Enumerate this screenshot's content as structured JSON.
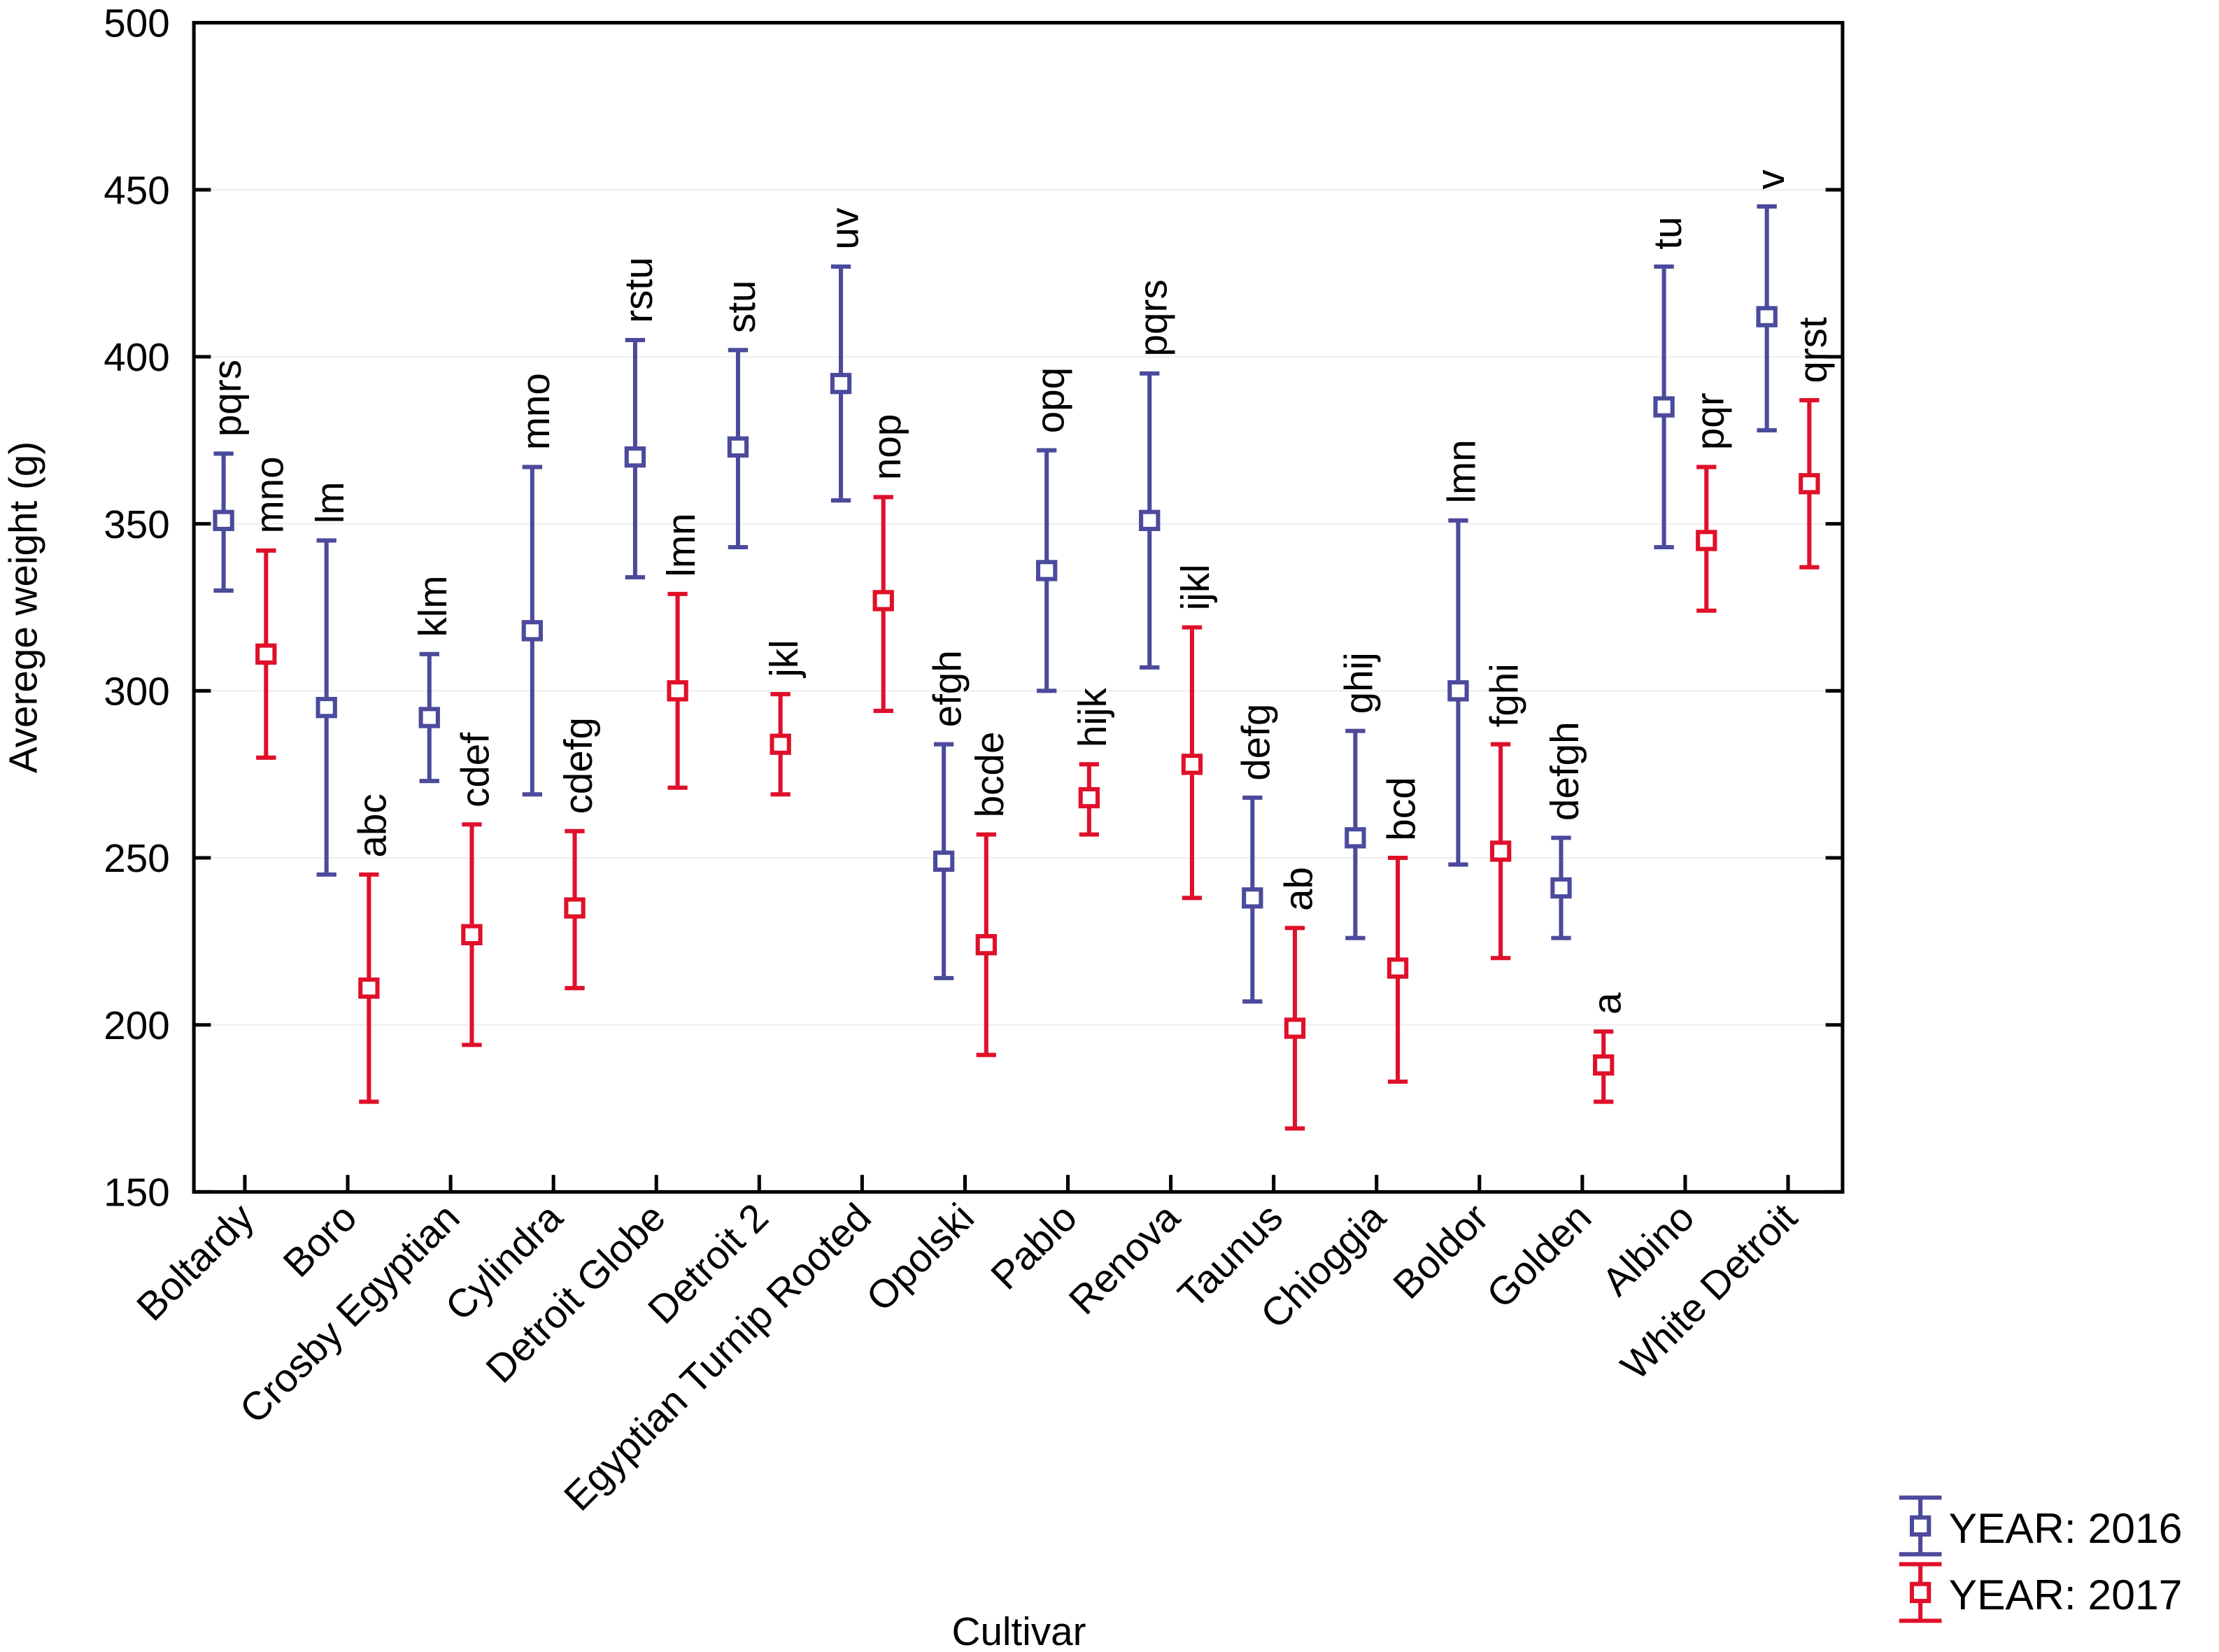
{
  "chart_data": {
    "type": "scatter",
    "subtype": "means-with-error-bars",
    "title": "",
    "xlabel": "Cultivar",
    "ylabel": "Averege weight (g)",
    "ylim": [
      150,
      500
    ],
    "yticks": [
      150,
      200,
      250,
      300,
      350,
      400,
      450,
      500
    ],
    "grid": true,
    "legend_position": "bottom-right",
    "categories": [
      "Boltardy",
      "Boro",
      "Crosby Egyptian",
      "Cylindra",
      "Detroit Globe",
      "Detroit 2",
      "Egyptian Turnip Rooted",
      "Opolski",
      "Pablo",
      "Renova",
      "Taunus",
      "Chioggia",
      "Boldor",
      "Golden",
      "Albino",
      "White Detroit"
    ],
    "series": [
      {
        "name": "YEAR: 2016",
        "color": "#4b4a9c",
        "marker": "open-square",
        "mean": [
          351,
          295,
          292,
          318,
          370,
          373,
          392,
          249,
          336,
          351,
          238,
          256,
          300,
          241,
          385,
          412
        ],
        "upper": [
          371,
          345,
          311,
          367,
          405,
          402,
          427,
          284,
          372,
          395,
          268,
          288,
          351,
          256,
          427,
          445
        ],
        "lower": [
          330,
          245,
          273,
          269,
          334,
          343,
          357,
          214,
          300,
          307,
          207,
          226,
          248,
          226,
          343,
          378
        ],
        "letters": [
          "pqrs",
          "lm",
          "klm",
          "mno",
          "rstu",
          "stu",
          "uv",
          "efgh",
          "opq",
          "pqrs",
          "defg",
          "ghij",
          "lmn",
          "defgh",
          "tu",
          "v"
        ]
      },
      {
        "name": "YEAR: 2017",
        "color": "#e0102a",
        "marker": "open-square",
        "mean": [
          311,
          211,
          227,
          235,
          300,
          284,
          327,
          224,
          268,
          278,
          199,
          217,
          252,
          188,
          345,
          362
        ],
        "upper": [
          342,
          245,
          260,
          258,
          329,
          299,
          358,
          257,
          278,
          319,
          229,
          250,
          284,
          198,
          367,
          387
        ],
        "lower": [
          280,
          177,
          194,
          211,
          271,
          269,
          294,
          191,
          257,
          238,
          169,
          183,
          220,
          177,
          324,
          337
        ],
        "letters": [
          "mno",
          "abc",
          "cdef",
          "cdefg",
          "lmn",
          "jkl",
          "nop",
          "bcde",
          "hijk",
          "ijkl",
          "ab",
          "bcd",
          "fghi",
          "a",
          "pqr",
          "qrst"
        ]
      }
    ]
  }
}
